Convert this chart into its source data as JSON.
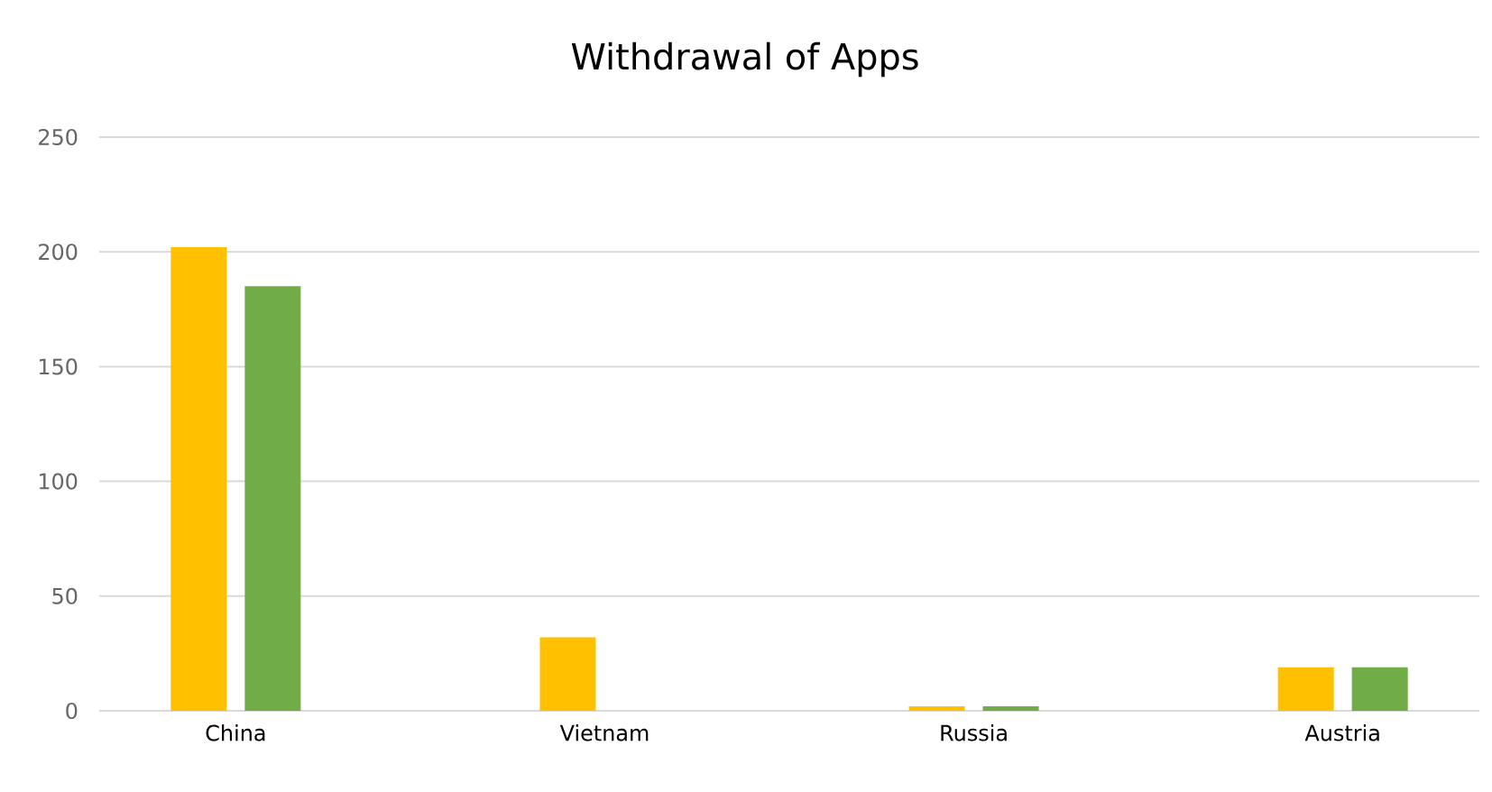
{
  "chart_data": {
    "type": "bar",
    "title": "Withdrawal of Apps",
    "categories": [
      "China",
      "Vietnam",
      "Russia",
      "Austria"
    ],
    "series": [
      {
        "color": "#ffc000",
        "values": [
          202,
          32,
          2,
          19
        ]
      },
      {
        "color": "#70ad47",
        "values": [
          185,
          null,
          2,
          19
        ]
      }
    ],
    "ylim": [
      0,
      250
    ],
    "yticks": [
      0,
      50,
      100,
      150,
      200,
      250
    ],
    "grid": "y"
  }
}
